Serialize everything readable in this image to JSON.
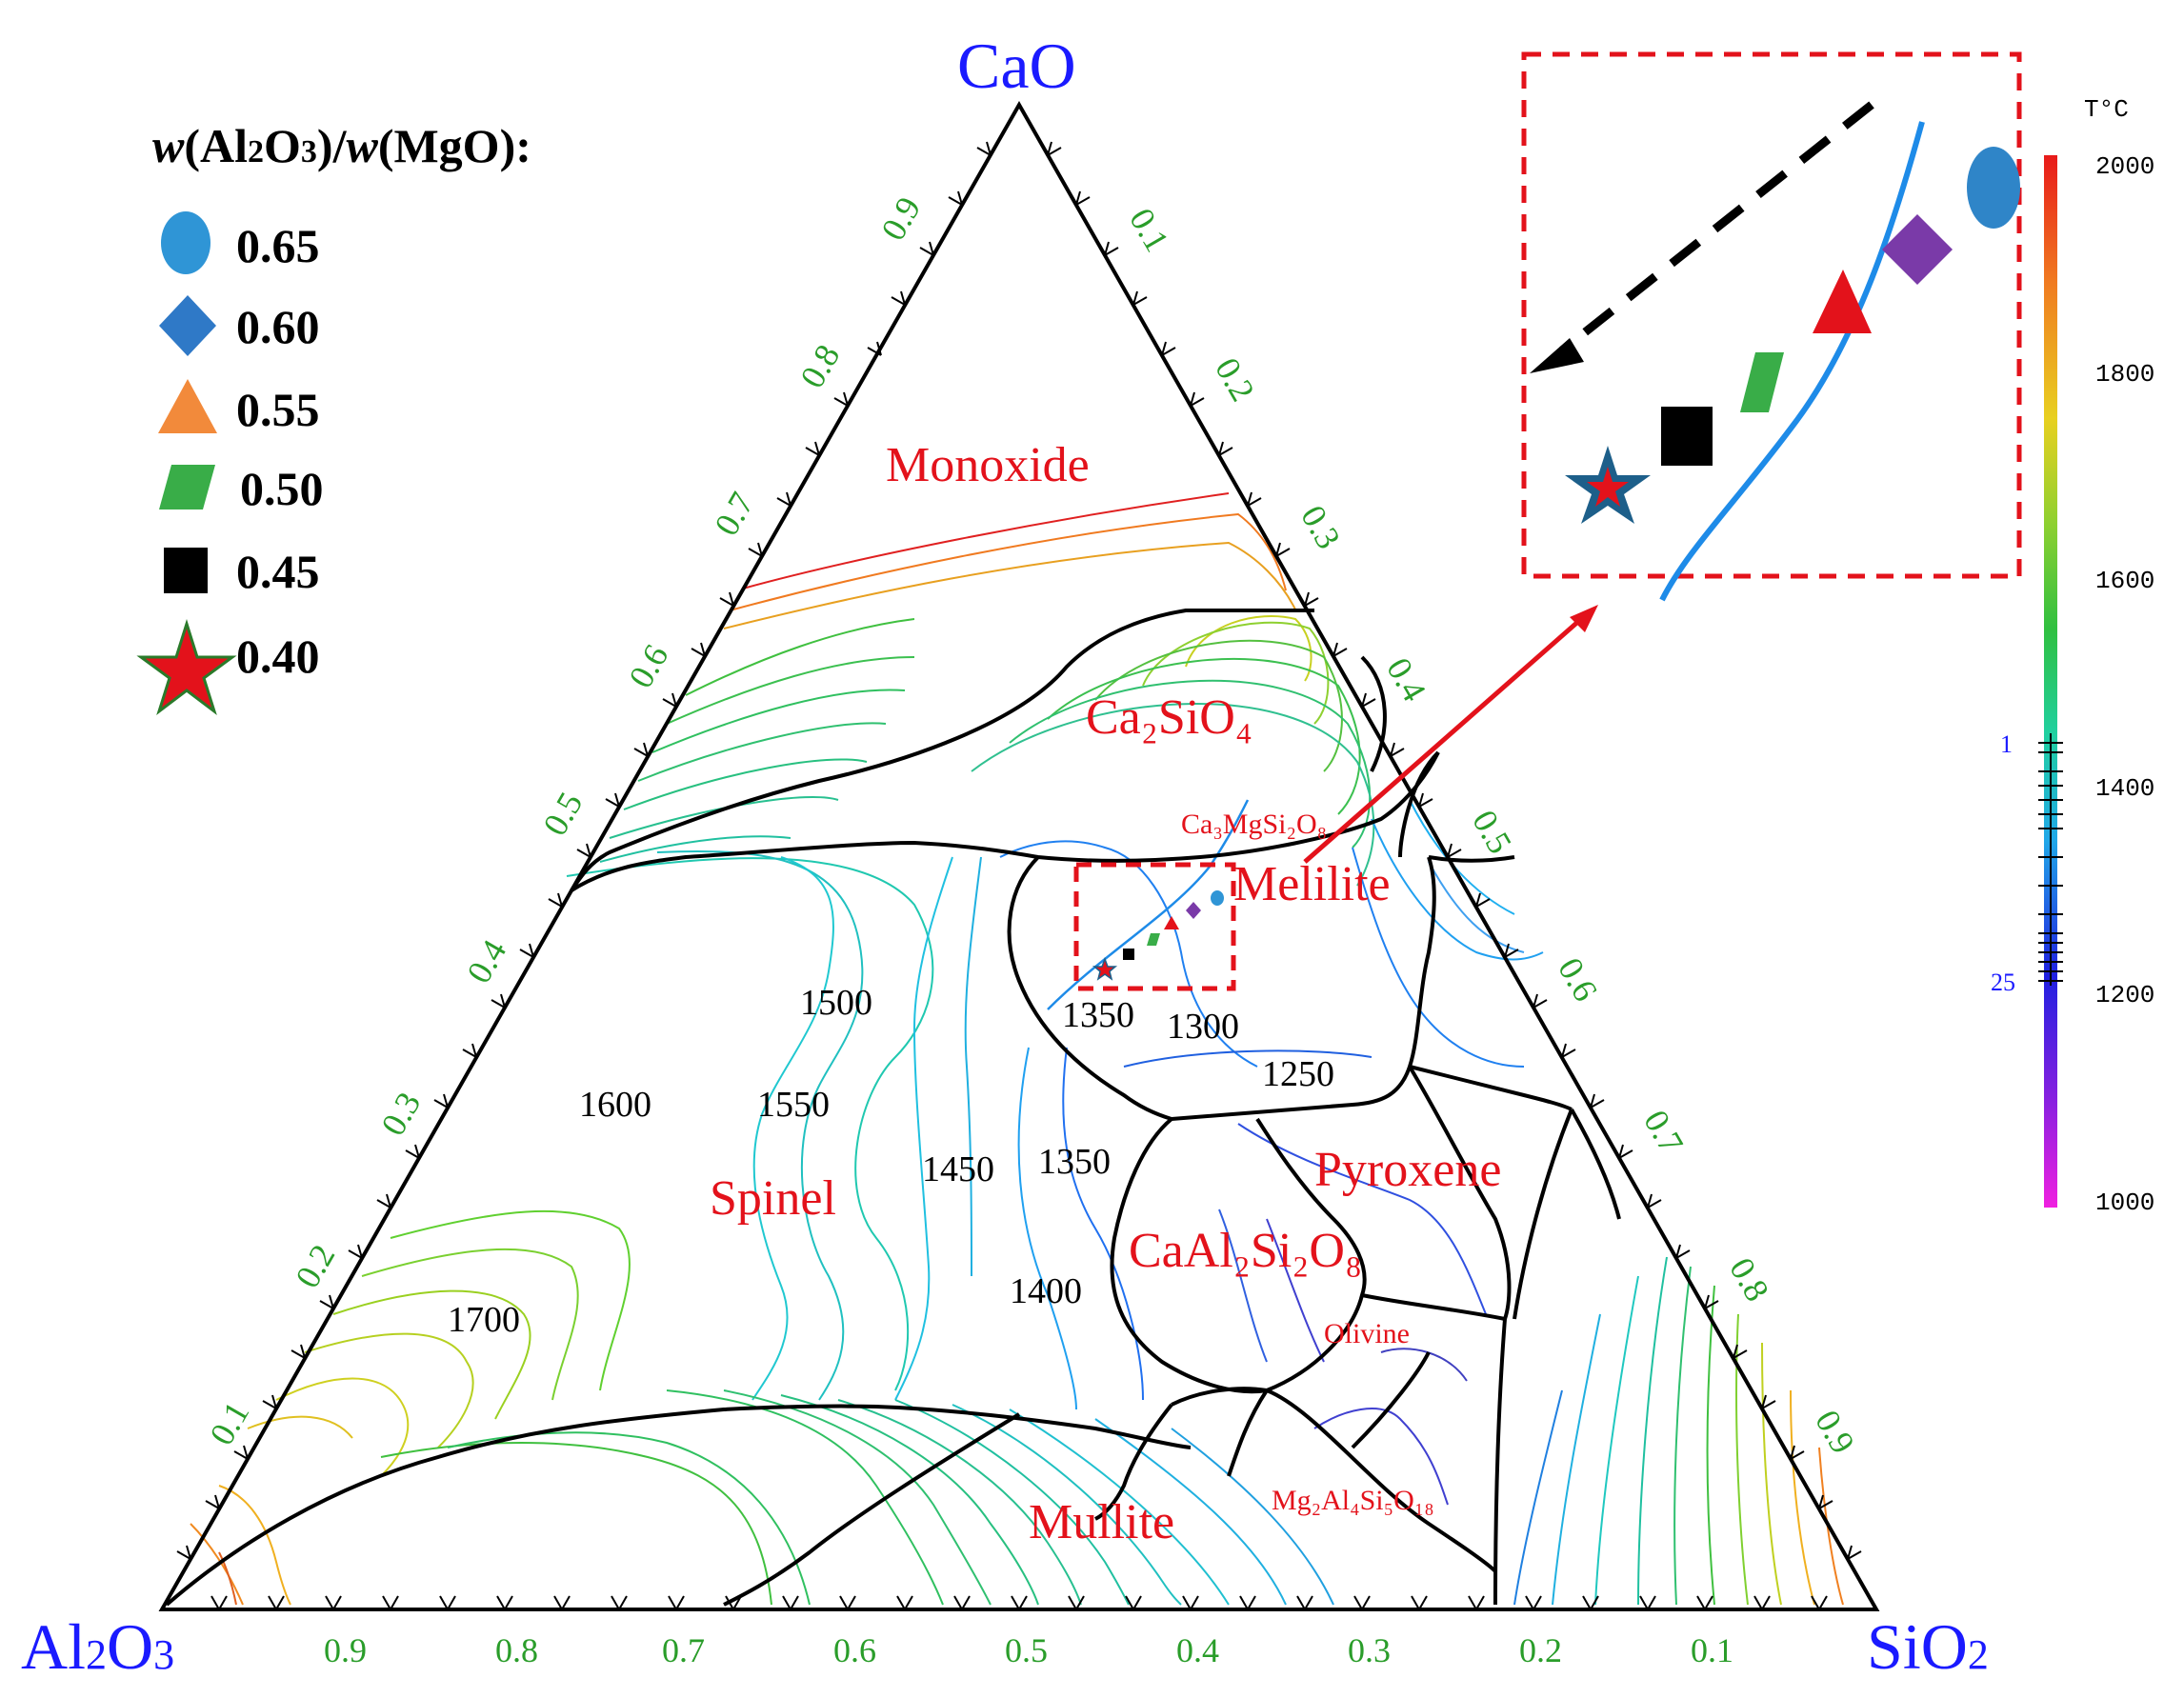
{
  "legend": {
    "title_w1": "w",
    "title_a": "(Al",
    "title_a2": "2",
    "title_o": "O",
    "title_o3": "3",
    "title_slash": ")/",
    "title_w2": "w",
    "title_mgo": "(MgO):",
    "items": [
      {
        "value": "0.65",
        "shape": "ellipse",
        "color": "#2f95d6"
      },
      {
        "value": "0.60",
        "shape": "diamond",
        "color": "#2f79c7"
      },
      {
        "value": "0.55",
        "shape": "triangle",
        "color": "#f28a3b"
      },
      {
        "value": "0.50",
        "shape": "parallelogram",
        "color": "#39ad48"
      },
      {
        "value": "0.45",
        "shape": "square",
        "color": "#000000"
      },
      {
        "value": "0.40",
        "shape": "star",
        "color": "#e3121b"
      }
    ]
  },
  "corners": {
    "top": "CaO",
    "left_main": "Al",
    "left_sub": "2",
    "left_o": "O",
    "left_sub2": "3",
    "right_main": "SiO",
    "right_sub": "2"
  },
  "ticks": {
    "left": [
      "0.1",
      "0.2",
      "0.3",
      "0.4",
      "0.5",
      "0.6",
      "0.7",
      "0.8",
      "0.9"
    ],
    "right": [
      "0.1",
      "0.2",
      "0.3",
      "0.4",
      "0.5",
      "0.6",
      "0.7",
      "0.8",
      "0.9"
    ],
    "bottom": [
      "0.9",
      "0.8",
      "0.7",
      "0.6",
      "0.5",
      "0.4",
      "0.3",
      "0.2",
      "0.1"
    ]
  },
  "regions": {
    "monoxide": "Monoxide",
    "ca2sio4": "Ca₂SiO₄",
    "ca3mg": "Ca₃MgSi₂O₈",
    "melilite": "Melilite",
    "pyroxene": "Pyroxene",
    "spinel": "Spinel",
    "caal2": "CaAl₂Si₂O₈",
    "olivine": "Olivine",
    "mg2al4": "Mg₂Al₄Si₅O₁₈",
    "mullite": "Mullite"
  },
  "isotherms": [
    "1500",
    "1350",
    "1300",
    "1250",
    "1600",
    "1550",
    "1450",
    "1350",
    "1400",
    "1700"
  ],
  "color_scale": {
    "unit": "T°C",
    "labels": [
      "2000",
      "1800",
      "1600",
      "1400",
      "1200",
      "1000"
    ],
    "marks": [
      "1",
      "25"
    ]
  },
  "colors": {
    "axis": "#000000",
    "tick_text": "#2a9d2a",
    "corner_text": "#1a1aff",
    "region_text": "#e3121b",
    "highlight_box": "#e3121b"
  }
}
